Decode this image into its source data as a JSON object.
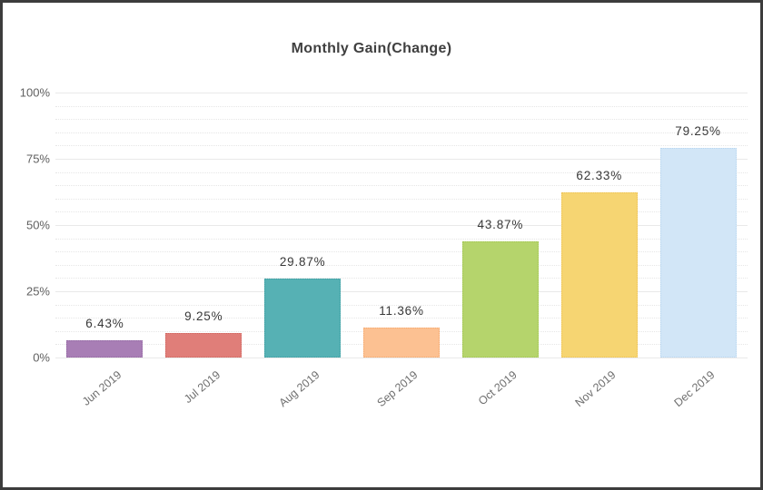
{
  "chart_data": {
    "type": "bar",
    "title": "Monthly Gain(Change)",
    "categories": [
      "Jun 2019",
      "Jul 2019",
      "Aug 2019",
      "Sep 2019",
      "Oct 2019",
      "Nov 2019",
      "Dec 2019"
    ],
    "values": [
      6.43,
      9.25,
      29.87,
      11.36,
      43.87,
      62.33,
      79.25
    ],
    "value_labels": [
      "6.43%",
      "9.25%",
      "29.87%",
      "11.36%",
      "43.87%",
      "62.33%",
      "79.25%"
    ],
    "bar_colors": [
      "#a87eb5",
      "#e07e79",
      "#56b1b4",
      "#fcc192",
      "#b5d46c",
      "#f6d572",
      "#d2e6f7"
    ],
    "bar_border_colors": [
      "#9469a3",
      "#d06862",
      "#3f9fa3",
      "#f5a96f",
      "#a2c653",
      "#eec254",
      "#b9d7f0"
    ],
    "xlabel": "",
    "ylabel": "",
    "ylim": [
      0,
      100
    ],
    "y_major_ticks": [
      0,
      25,
      50,
      75,
      100
    ],
    "y_tick_labels": [
      "0%",
      "25%",
      "50%",
      "75%",
      "100%"
    ],
    "y_minor_step": 5,
    "grid": "major solid, minor dotted, horizontal only",
    "legend": "none",
    "colors": {
      "title": "#3f3f3f",
      "value_label": "#383838",
      "y_tick_label": "#606060",
      "x_tick_label": "#6f6f6f",
      "grid_major": "#e9e9e9",
      "grid_minor": "#e6e6e6",
      "frame_border": "#3c3c3c",
      "background": "#ffffff"
    }
  }
}
